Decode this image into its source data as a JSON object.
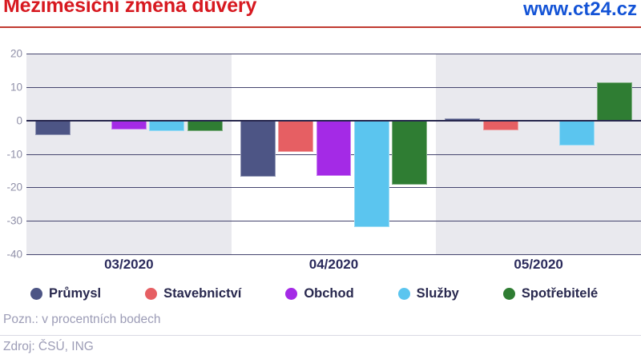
{
  "header": {
    "title": "Meziměsíční změna důvěry",
    "site": "www.ct24.cz"
  },
  "chart_data": {
    "type": "bar",
    "title": "Meziměsíční změna důvěry",
    "xlabel": "",
    "ylabel": "",
    "categories": [
      "03/2020",
      "04/2020",
      "05/2020"
    ],
    "series": [
      {
        "name": "Průmysl",
        "color": "#4D5585",
        "values": [
          -4.3,
          -16.7,
          0.7
        ]
      },
      {
        "name": "Stavebnictví",
        "color": "#E65F63",
        "values": [
          0,
          -9.3,
          -2.9
        ]
      },
      {
        "name": "Obchod",
        "color": "#A42AE6",
        "values": [
          -2.7,
          -16.6,
          0
        ]
      },
      {
        "name": "Služby",
        "color": "#5BC5EF",
        "values": [
          -3.2,
          -31.9,
          -7.5
        ]
      },
      {
        "name": "Spotřebitelé",
        "color": "#2F7D33",
        "values": [
          -3.3,
          -19.1,
          11.5
        ]
      }
    ],
    "ylim": [
      -40,
      20
    ],
    "yticks": [
      20,
      10,
      0,
      -10,
      -20,
      -30,
      -40
    ],
    "grid": true,
    "legend_position": "bottom",
    "band_colors": [
      "#E9E9EE",
      "#FFFFFF",
      "#E9E9EE"
    ]
  },
  "footer": {
    "note": "Pozn.: v procentních bodech",
    "source": "Zdroj: ČSÚ, ING"
  },
  "colors": {
    "title_red": "#D71920",
    "link_blue": "#1353D6",
    "divider_red": "#C03A30",
    "grid_line": "#45456E",
    "zero_line": "#28284E",
    "axis_label": "#9090A8",
    "category_label": "#2B2B5C",
    "legend_label": "#28284E",
    "note_gray": "#9C9CB6"
  }
}
